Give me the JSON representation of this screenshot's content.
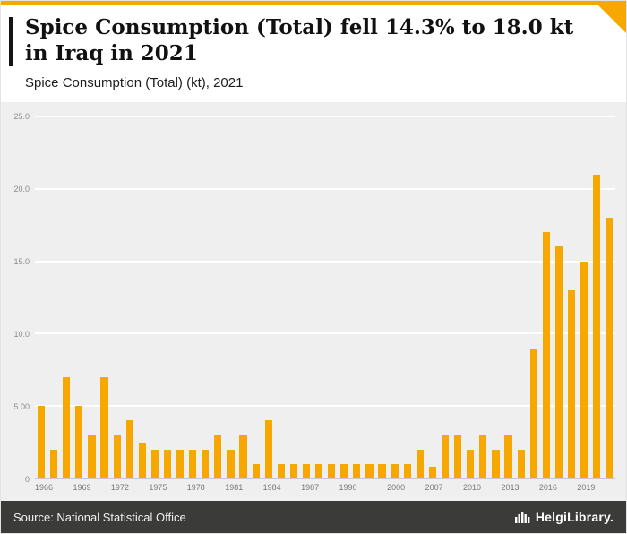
{
  "colors": {
    "accent": "#F6A800",
    "bar": "#F6A800",
    "chart_background": "#EFEFEF",
    "footer_background": "#3B3B3A",
    "gridline": "#FFFFFF"
  },
  "header": {
    "title": "Spice Consumption (Total) fell 14.3% to 18.0 kt in Iraq in 2021",
    "subtitle": "Spice Consumption (Total) (kt), 2021"
  },
  "footer": {
    "source": "Source: National Statistical Office",
    "brand": "HelgiLibrary."
  },
  "chart_data": {
    "type": "bar",
    "title": "Spice Consumption (Total) (kt), 2021",
    "xlabel": "",
    "ylabel": "",
    "ylim": [
      0,
      25
    ],
    "grid": true,
    "legend": "none",
    "bar_color": "#F6A800",
    "yticks": [
      {
        "value": 0,
        "label": "0"
      },
      {
        "value": 5,
        "label": "5.00"
      },
      {
        "value": 10,
        "label": "10.0"
      },
      {
        "value": 15,
        "label": "15.0"
      },
      {
        "value": 20,
        "label": "20.0"
      },
      {
        "value": 25,
        "label": "25.0"
      }
    ],
    "x_tick_labels": [
      "1966",
      "1969",
      "1972",
      "1975",
      "1978",
      "1981",
      "1984",
      "1987",
      "1990",
      "2000",
      "2007",
      "2010",
      "2013",
      "2016",
      "2019"
    ],
    "categories": [
      "1966",
      "1967",
      "1968",
      "1969",
      "1970",
      "1971",
      "1972",
      "1973",
      "1974",
      "1975",
      "1976",
      "1977",
      "1978",
      "1979",
      "1980",
      "1981",
      "1982",
      "1983",
      "1984",
      "1985",
      "1986",
      "1987",
      "1988",
      "1989",
      "1990",
      "1997",
      "1998",
      "1999",
      "2000",
      "2005",
      "2006",
      "2007",
      "2008",
      "2009",
      "2010",
      "2011",
      "2012",
      "2013",
      "2014",
      "2015",
      "2016",
      "2017",
      "2018",
      "2019",
      "2020",
      "2021"
    ],
    "values": [
      5.0,
      2.0,
      7.0,
      5.0,
      3.0,
      7.0,
      3.0,
      4.0,
      2.5,
      2.0,
      2.0,
      2.0,
      2.0,
      2.0,
      3.0,
      2.0,
      3.0,
      1.0,
      4.0,
      1.0,
      1.0,
      1.0,
      1.0,
      1.0,
      1.0,
      1.0,
      1.0,
      1.0,
      1.0,
      1.0,
      2.0,
      0.8,
      3.0,
      3.0,
      2.0,
      3.0,
      2.0,
      3.0,
      2.0,
      9.0,
      17.0,
      16.0,
      13.0,
      15.0,
      21.0,
      18.0
    ],
    "series": [
      {
        "name": "Spice Consumption (Total) (kt)"
      }
    ]
  }
}
